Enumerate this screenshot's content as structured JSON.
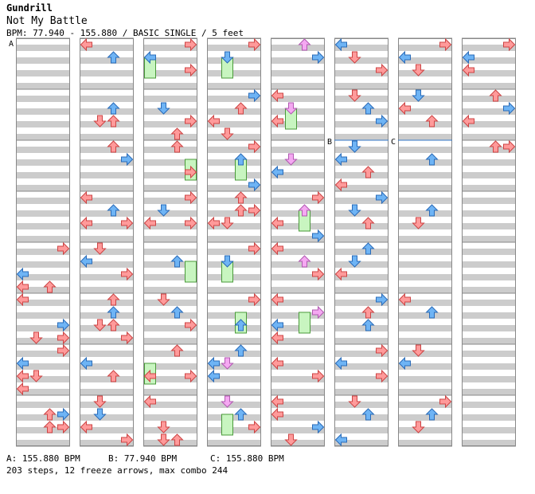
{
  "header": {
    "artist": "Gundrill",
    "title": "Not My Battle",
    "info": "BPM: 77.940 - 155.880 / BASIC SINGLE / 5 feet"
  },
  "bpm_changes": [
    {
      "marker": "A",
      "column": 0,
      "measure_pos": 0
    },
    {
      "marker": "B",
      "column": 5,
      "measure_pos": 2
    },
    {
      "marker": "C",
      "column": 6,
      "measure_pos": 2
    }
  ],
  "footer": {
    "bpm_a": "A: 155.880 BPM",
    "bpm_b": "B: 77.940 BPM",
    "bpm_c": "C: 155.880 BPM",
    "summary": "203 steps, 12 freeze arrows, max combo 244"
  },
  "colors": {
    "stripe": "#cccccc",
    "quarter_arrow": "#ff9a9a",
    "eighth_arrow": "#6eb4f5",
    "sixteenth_arrow": "#f5a8f2",
    "freeze_body": "#c8f5c0",
    "freeze_border": "#4a9a3a",
    "bpm_line": "#3478c8"
  },
  "chart": {
    "columns": 8,
    "measures_per_column": 8,
    "lanes": [
      "left",
      "down",
      "up",
      "right"
    ],
    "notes": [
      {
        "c": 0,
        "m": 4,
        "b": 0,
        "l": 3,
        "t": "q"
      },
      {
        "c": 0,
        "m": 4,
        "b": 2,
        "l": 0,
        "t": "e"
      },
      {
        "c": 0,
        "m": 4,
        "b": 3,
        "l": 0,
        "t": "q"
      },
      {
        "c": 0,
        "m": 4,
        "b": 3,
        "l": 2,
        "t": "q"
      },
      {
        "c": 0,
        "m": 5,
        "b": 0,
        "l": 0,
        "t": "q"
      },
      {
        "c": 0,
        "m": 5,
        "b": 2,
        "l": 3,
        "t": "e"
      },
      {
        "c": 0,
        "m": 5,
        "b": 3,
        "l": 1,
        "t": "q"
      },
      {
        "c": 0,
        "m": 5,
        "b": 3,
        "l": 3,
        "t": "q"
      },
      {
        "c": 0,
        "m": 6,
        "b": 0,
        "l": 3,
        "t": "q"
      },
      {
        "c": 0,
        "m": 6,
        "b": 1,
        "l": 0,
        "t": "e"
      },
      {
        "c": 0,
        "m": 6,
        "b": 2,
        "l": 0,
        "t": "q"
      },
      {
        "c": 0,
        "m": 6,
        "b": 2,
        "l": 1,
        "t": "q"
      },
      {
        "c": 0,
        "m": 6,
        "b": 3,
        "l": 0,
        "t": "q"
      },
      {
        "c": 0,
        "m": 7,
        "b": 1,
        "l": 2,
        "t": "q"
      },
      {
        "c": 0,
        "m": 7,
        "b": 1,
        "l": 3,
        "t": "e"
      },
      {
        "c": 0,
        "m": 7,
        "b": 2,
        "l": 2,
        "t": "q"
      },
      {
        "c": 0,
        "m": 7,
        "b": 2,
        "l": 3,
        "t": "q"
      },
      {
        "c": 1,
        "m": 0,
        "b": 0,
        "l": 0,
        "t": "q"
      },
      {
        "c": 1,
        "m": 0,
        "b": 1,
        "l": 2,
        "t": "e"
      },
      {
        "c": 1,
        "m": 1,
        "b": 1,
        "l": 2,
        "t": "e"
      },
      {
        "c": 1,
        "m": 1,
        "b": 2,
        "l": 1,
        "t": "q"
      },
      {
        "c": 1,
        "m": 1,
        "b": 2,
        "l": 2,
        "t": "q"
      },
      {
        "c": 1,
        "m": 2,
        "b": 0,
        "l": 2,
        "t": "q"
      },
      {
        "c": 1,
        "m": 2,
        "b": 1,
        "l": 3,
        "t": "e"
      },
      {
        "c": 1,
        "m": 3,
        "b": 0,
        "l": 0,
        "t": "q"
      },
      {
        "c": 1,
        "m": 3,
        "b": 1,
        "l": 2,
        "t": "e"
      },
      {
        "c": 1,
        "m": 3,
        "b": 2,
        "l": 0,
        "t": "q"
      },
      {
        "c": 1,
        "m": 3,
        "b": 2,
        "l": 3,
        "t": "q"
      },
      {
        "c": 1,
        "m": 4,
        "b": 0,
        "l": 1,
        "t": "q"
      },
      {
        "c": 1,
        "m": 4,
        "b": 1,
        "l": 0,
        "t": "e"
      },
      {
        "c": 1,
        "m": 4,
        "b": 2,
        "l": 3,
        "t": "q"
      },
      {
        "c": 1,
        "m": 5,
        "b": 0,
        "l": 2,
        "t": "q"
      },
      {
        "c": 1,
        "m": 5,
        "b": 1,
        "l": 2,
        "t": "e"
      },
      {
        "c": 1,
        "m": 5,
        "b": 2,
        "l": 1,
        "t": "q"
      },
      {
        "c": 1,
        "m": 5,
        "b": 2,
        "l": 2,
        "t": "q"
      },
      {
        "c": 1,
        "m": 5,
        "b": 3,
        "l": 3,
        "t": "q"
      },
      {
        "c": 1,
        "m": 6,
        "b": 1,
        "l": 0,
        "t": "e"
      },
      {
        "c": 1,
        "m": 6,
        "b": 2,
        "l": 2,
        "t": "q"
      },
      {
        "c": 1,
        "m": 7,
        "b": 0,
        "l": 1,
        "t": "q"
      },
      {
        "c": 1,
        "m": 7,
        "b": 1,
        "l": 1,
        "t": "e"
      },
      {
        "c": 1,
        "m": 7,
        "b": 2,
        "l": 0,
        "t": "q"
      },
      {
        "c": 1,
        "m": 7,
        "b": 3,
        "l": 3,
        "t": "q"
      },
      {
        "c": 2,
        "m": 0,
        "b": 0,
        "l": 3,
        "t": "q"
      },
      {
        "c": 2,
        "m": 0,
        "b": 1,
        "l": 0,
        "t": "e"
      },
      {
        "c": 2,
        "m": 0,
        "b": 2,
        "l": 3,
        "t": "q"
      },
      {
        "c": 2,
        "m": 1,
        "b": 1,
        "l": 1,
        "t": "e"
      },
      {
        "c": 2,
        "m": 1,
        "b": 2,
        "l": 3,
        "t": "q"
      },
      {
        "c": 2,
        "m": 1,
        "b": 3,
        "l": 2,
        "t": "q"
      },
      {
        "c": 2,
        "m": 2,
        "b": 0,
        "l": 2,
        "t": "q"
      },
      {
        "c": 2,
        "m": 2,
        "b": 2,
        "l": 3,
        "t": "q"
      },
      {
        "c": 2,
        "m": 3,
        "b": 0,
        "l": 3,
        "t": "q"
      },
      {
        "c": 2,
        "m": 3,
        "b": 1,
        "l": 1,
        "t": "e"
      },
      {
        "c": 2,
        "m": 3,
        "b": 2,
        "l": 0,
        "t": "q"
      },
      {
        "c": 2,
        "m": 3,
        "b": 2,
        "l": 3,
        "t": "q"
      },
      {
        "c": 2,
        "m": 4,
        "b": 1,
        "l": 2,
        "t": "e"
      },
      {
        "c": 2,
        "m": 5,
        "b": 0,
        "l": 1,
        "t": "q"
      },
      {
        "c": 2,
        "m": 5,
        "b": 1,
        "l": 2,
        "t": "e"
      },
      {
        "c": 2,
        "m": 5,
        "b": 2,
        "l": 3,
        "t": "q"
      },
      {
        "c": 2,
        "m": 6,
        "b": 0,
        "l": 2,
        "t": "q"
      },
      {
        "c": 2,
        "m": 6,
        "b": 2,
        "l": 0,
        "t": "q"
      },
      {
        "c": 2,
        "m": 6,
        "b": 2,
        "l": 3,
        "t": "q"
      },
      {
        "c": 2,
        "m": 7,
        "b": 0,
        "l": 0,
        "t": "q"
      },
      {
        "c": 2,
        "m": 7,
        "b": 2,
        "l": 1,
        "t": "q"
      },
      {
        "c": 2,
        "m": 7,
        "b": 3,
        "l": 1,
        "t": "q"
      },
      {
        "c": 2,
        "m": 7,
        "b": 3,
        "l": 2,
        "t": "q"
      },
      {
        "c": 3,
        "m": 0,
        "b": 0,
        "l": 3,
        "t": "q"
      },
      {
        "c": 3,
        "m": 0,
        "b": 1,
        "l": 1,
        "t": "e"
      },
      {
        "c": 3,
        "m": 1,
        "b": 0,
        "l": 3,
        "t": "e"
      },
      {
        "c": 3,
        "m": 1,
        "b": 1,
        "l": 2,
        "t": "q"
      },
      {
        "c": 3,
        "m": 1,
        "b": 2,
        "l": 0,
        "t": "q"
      },
      {
        "c": 3,
        "m": 1,
        "b": 3,
        "l": 1,
        "t": "q"
      },
      {
        "c": 3,
        "m": 2,
        "b": 0,
        "l": 3,
        "t": "q"
      },
      {
        "c": 3,
        "m": 2,
        "b": 1,
        "l": 2,
        "t": "e"
      },
      {
        "c": 3,
        "m": 2,
        "b": 3,
        "l": 3,
        "t": "e"
      },
      {
        "c": 3,
        "m": 3,
        "b": 0,
        "l": 2,
        "t": "q"
      },
      {
        "c": 3,
        "m": 3,
        "b": 1,
        "l": 2,
        "t": "q"
      },
      {
        "c": 3,
        "m": 3,
        "b": 1,
        "l": 3,
        "t": "q"
      },
      {
        "c": 3,
        "m": 3,
        "b": 2,
        "l": 0,
        "t": "q"
      },
      {
        "c": 3,
        "m": 3,
        "b": 2,
        "l": 1,
        "t": "q"
      },
      {
        "c": 3,
        "m": 4,
        "b": 0,
        "l": 3,
        "t": "q"
      },
      {
        "c": 3,
        "m": 4,
        "b": 1,
        "l": 1,
        "t": "e"
      },
      {
        "c": 3,
        "m": 5,
        "b": 0,
        "l": 3,
        "t": "q"
      },
      {
        "c": 3,
        "m": 5,
        "b": 2,
        "l": 2,
        "t": "e"
      },
      {
        "c": 3,
        "m": 6,
        "b": 0,
        "l": 2,
        "t": "e"
      },
      {
        "c": 3,
        "m": 6,
        "b": 1,
        "l": 0,
        "t": "e"
      },
      {
        "c": 3,
        "m": 6,
        "b": 1,
        "l": 1,
        "t": "s"
      },
      {
        "c": 3,
        "m": 6,
        "b": 2,
        "l": 0,
        "t": "e"
      },
      {
        "c": 3,
        "m": 7,
        "b": 0,
        "l": 1,
        "t": "s"
      },
      {
        "c": 3,
        "m": 7,
        "b": 1,
        "l": 2,
        "t": "e"
      },
      {
        "c": 3,
        "m": 7,
        "b": 2,
        "l": 3,
        "t": "q"
      },
      {
        "c": 4,
        "m": 0,
        "b": 0,
        "l": 2,
        "t": "s"
      },
      {
        "c": 4,
        "m": 0,
        "b": 1,
        "l": 3,
        "t": "e"
      },
      {
        "c": 4,
        "m": 1,
        "b": 0,
        "l": 0,
        "t": "q"
      },
      {
        "c": 4,
        "m": 1,
        "b": 1,
        "l": 1,
        "t": "s"
      },
      {
        "c": 4,
        "m": 1,
        "b": 2,
        "l": 0,
        "t": "q"
      },
      {
        "c": 4,
        "m": 2,
        "b": 1,
        "l": 1,
        "t": "s"
      },
      {
        "c": 4,
        "m": 2,
        "b": 2,
        "l": 0,
        "t": "e"
      },
      {
        "c": 4,
        "m": 3,
        "b": 0,
        "l": 3,
        "t": "q"
      },
      {
        "c": 4,
        "m": 3,
        "b": 1,
        "l": 2,
        "t": "s"
      },
      {
        "c": 4,
        "m": 3,
        "b": 2,
        "l": 0,
        "t": "q"
      },
      {
        "c": 4,
        "m": 3,
        "b": 3,
        "l": 3,
        "t": "e"
      },
      {
        "c": 4,
        "m": 4,
        "b": 0,
        "l": 0,
        "t": "q"
      },
      {
        "c": 4,
        "m": 4,
        "b": 1,
        "l": 2,
        "t": "s"
      },
      {
        "c": 4,
        "m": 4,
        "b": 2,
        "l": 3,
        "t": "q"
      },
      {
        "c": 4,
        "m": 5,
        "b": 0,
        "l": 0,
        "t": "q"
      },
      {
        "c": 4,
        "m": 5,
        "b": 1,
        "l": 3,
        "t": "s"
      },
      {
        "c": 4,
        "m": 5,
        "b": 2,
        "l": 0,
        "t": "e"
      },
      {
        "c": 4,
        "m": 5,
        "b": 3,
        "l": 0,
        "t": "q"
      },
      {
        "c": 4,
        "m": 6,
        "b": 1,
        "l": 0,
        "t": "q"
      },
      {
        "c": 4,
        "m": 6,
        "b": 2,
        "l": 3,
        "t": "q"
      },
      {
        "c": 4,
        "m": 7,
        "b": 0,
        "l": 0,
        "t": "q"
      },
      {
        "c": 4,
        "m": 7,
        "b": 1,
        "l": 0,
        "t": "q"
      },
      {
        "c": 4,
        "m": 7,
        "b": 2,
        "l": 3,
        "t": "e"
      },
      {
        "c": 4,
        "m": 7,
        "b": 3,
        "l": 1,
        "t": "q"
      },
      {
        "c": 5,
        "m": 0,
        "b": 0,
        "l": 0,
        "t": "e"
      },
      {
        "c": 5,
        "m": 0,
        "b": 1,
        "l": 1,
        "t": "q"
      },
      {
        "c": 5,
        "m": 0,
        "b": 2,
        "l": 3,
        "t": "q"
      },
      {
        "c": 5,
        "m": 1,
        "b": 0,
        "l": 1,
        "t": "q"
      },
      {
        "c": 5,
        "m": 1,
        "b": 1,
        "l": 2,
        "t": "e"
      },
      {
        "c": 5,
        "m": 1,
        "b": 2,
        "l": 3,
        "t": "e"
      },
      {
        "c": 5,
        "m": 2,
        "b": 0,
        "l": 1,
        "t": "e"
      },
      {
        "c": 5,
        "m": 2,
        "b": 1,
        "l": 0,
        "t": "e"
      },
      {
        "c": 5,
        "m": 2,
        "b": 2,
        "l": 2,
        "t": "q"
      },
      {
        "c": 5,
        "m": 2,
        "b": 3,
        "l": 0,
        "t": "q"
      },
      {
        "c": 5,
        "m": 3,
        "b": 0,
        "l": 3,
        "t": "e"
      },
      {
        "c": 5,
        "m": 3,
        "b": 1,
        "l": 1,
        "t": "e"
      },
      {
        "c": 5,
        "m": 3,
        "b": 2,
        "l": 2,
        "t": "q"
      },
      {
        "c": 5,
        "m": 4,
        "b": 0,
        "l": 2,
        "t": "e"
      },
      {
        "c": 5,
        "m": 4,
        "b": 1,
        "l": 1,
        "t": "e"
      },
      {
        "c": 5,
        "m": 4,
        "b": 2,
        "l": 0,
        "t": "q"
      },
      {
        "c": 5,
        "m": 5,
        "b": 0,
        "l": 3,
        "t": "e"
      },
      {
        "c": 5,
        "m": 5,
        "b": 1,
        "l": 2,
        "t": "q"
      },
      {
        "c": 5,
        "m": 5,
        "b": 2,
        "l": 2,
        "t": "e"
      },
      {
        "c": 5,
        "m": 6,
        "b": 0,
        "l": 3,
        "t": "q"
      },
      {
        "c": 5,
        "m": 6,
        "b": 1,
        "l": 0,
        "t": "e"
      },
      {
        "c": 5,
        "m": 6,
        "b": 2,
        "l": 3,
        "t": "q"
      },
      {
        "c": 5,
        "m": 7,
        "b": 0,
        "l": 1,
        "t": "q"
      },
      {
        "c": 5,
        "m": 7,
        "b": 1,
        "l": 2,
        "t": "e"
      },
      {
        "c": 5,
        "m": 7,
        "b": 3,
        "l": 0,
        "t": "e"
      },
      {
        "c": 6,
        "m": 0,
        "b": 0,
        "l": 3,
        "t": "q"
      },
      {
        "c": 6,
        "m": 0,
        "b": 1,
        "l": 0,
        "t": "e"
      },
      {
        "c": 6,
        "m": 0,
        "b": 2,
        "l": 1,
        "t": "q"
      },
      {
        "c": 6,
        "m": 1,
        "b": 0,
        "l": 1,
        "t": "e"
      },
      {
        "c": 6,
        "m": 1,
        "b": 1,
        "l": 0,
        "t": "q"
      },
      {
        "c": 6,
        "m": 1,
        "b": 2,
        "l": 2,
        "t": "q"
      },
      {
        "c": 6,
        "m": 2,
        "b": 1,
        "l": 2,
        "t": "e"
      },
      {
        "c": 6,
        "m": 3,
        "b": 1,
        "l": 2,
        "t": "e"
      },
      {
        "c": 6,
        "m": 3,
        "b": 2,
        "l": 1,
        "t": "q"
      },
      {
        "c": 6,
        "m": 5,
        "b": 0,
        "l": 0,
        "t": "q"
      },
      {
        "c": 6,
        "m": 5,
        "b": 1,
        "l": 2,
        "t": "e"
      },
      {
        "c": 6,
        "m": 6,
        "b": 0,
        "l": 1,
        "t": "q"
      },
      {
        "c": 6,
        "m": 6,
        "b": 1,
        "l": 0,
        "t": "e"
      },
      {
        "c": 6,
        "m": 7,
        "b": 0,
        "l": 3,
        "t": "q"
      },
      {
        "c": 6,
        "m": 7,
        "b": 1,
        "l": 2,
        "t": "e"
      },
      {
        "c": 6,
        "m": 7,
        "b": 2,
        "l": 1,
        "t": "q"
      },
      {
        "c": 7,
        "m": 0,
        "b": 0,
        "l": 3,
        "t": "q"
      },
      {
        "c": 7,
        "m": 0,
        "b": 1,
        "l": 0,
        "t": "e"
      },
      {
        "c": 7,
        "m": 0,
        "b": 2,
        "l": 0,
        "t": "q"
      },
      {
        "c": 7,
        "m": 1,
        "b": 0,
        "l": 2,
        "t": "q"
      },
      {
        "c": 7,
        "m": 1,
        "b": 1,
        "l": 3,
        "t": "e"
      },
      {
        "c": 7,
        "m": 1,
        "b": 2,
        "l": 0,
        "t": "q"
      },
      {
        "c": 7,
        "m": 2,
        "b": 0,
        "l": 2,
        "t": "q"
      },
      {
        "c": 7,
        "m": 2,
        "b": 0,
        "l": 3,
        "t": "q"
      }
    ],
    "freezes": [
      {
        "c": 2,
        "m": 0,
        "b0": 1,
        "b1": 2,
        "l": 0
      },
      {
        "c": 2,
        "m": 2,
        "b0": 1,
        "b1": 2,
        "l": 3
      },
      {
        "c": 2,
        "m": 4,
        "b0": 1,
        "b1": 2,
        "l": 3
      },
      {
        "c": 2,
        "m": 6,
        "b0": 1,
        "b1": 2,
        "l": 0
      },
      {
        "c": 3,
        "m": 0,
        "b0": 1,
        "b1": 2,
        "l": 1
      },
      {
        "c": 3,
        "m": 2,
        "b0": 1,
        "b1": 2,
        "l": 2
      },
      {
        "c": 3,
        "m": 4,
        "b0": 1,
        "b1": 2,
        "l": 1
      },
      {
        "c": 3,
        "m": 5,
        "b0": 1,
        "b1": 2,
        "l": 2
      },
      {
        "c": 3,
        "m": 7,
        "b0": 1,
        "b1": 2,
        "l": 1
      },
      {
        "c": 4,
        "m": 1,
        "b0": 1,
        "b1": 2,
        "l": 1
      },
      {
        "c": 4,
        "m": 3,
        "b0": 1,
        "b1": 2,
        "l": 2
      },
      {
        "c": 4,
        "m": 5,
        "b0": 1,
        "b1": 2,
        "l": 2
      }
    ]
  }
}
